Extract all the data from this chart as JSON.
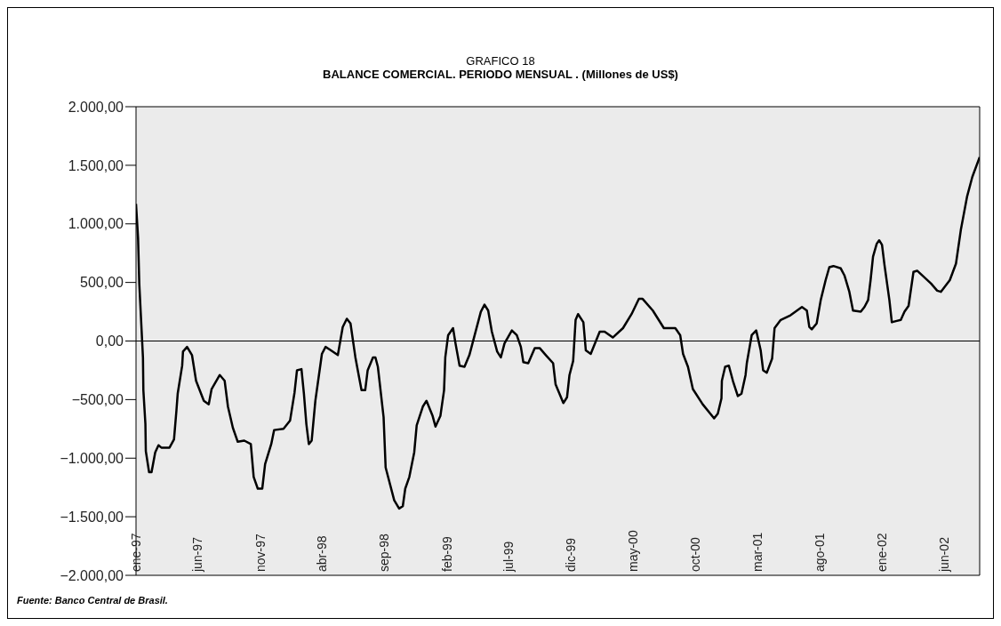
{
  "chart_data": {
    "type": "line",
    "title": "GRAFICO 18",
    "subtitle": "BALANCE COMERCIAL. PERIODO MENSUAL . (Millones de US$)",
    "annotations": [
      "Fuente: Banco Central de Brasil."
    ],
    "x": [
      "1997-01-01",
      "1997-01-06",
      "1997-01-09",
      "1997-01-18",
      "1997-01-19",
      "1997-01-24",
      "1997-01-25",
      "1997-02-02",
      "1997-02-08",
      "1997-02-17",
      "1997-02-25",
      "1997-03-04",
      "1997-03-24",
      "1997-04-04",
      "1997-04-10",
      "1997-04-13",
      "1997-04-24",
      "1997-04-26",
      "1997-05-06",
      "1997-05-18",
      "1997-05-28",
      "1997-06-16",
      "1997-06-28",
      "1997-07-05",
      "1997-07-25",
      "1997-08-06",
      "1997-08-14",
      "1997-08-26",
      "1997-09-07",
      "1997-09-23",
      "1997-10-09",
      "1997-10-16",
      "1997-10-26",
      "1997-11-06",
      "1997-11-13",
      "1997-11-28",
      "1997-12-05",
      "1997-12-28",
      "1998-01-13",
      "1998-01-24",
      "1998-01-30",
      "1998-02-10",
      "1998-02-16",
      "1998-02-22",
      "1998-02-28",
      "1998-03-07",
      "1998-03-16",
      "1998-04-01",
      "1998-04-10",
      "1998-04-19",
      "1998-05-10",
      "1998-05-22",
      "1998-06-01",
      "1998-06-10",
      "1998-06-22",
      "1998-07-01",
      "1998-07-07",
      "1998-07-16",
      "1998-07-22",
      "1998-08-04",
      "1998-08-10",
      "1998-08-16",
      "1998-08-30",
      "1998-09-04",
      "1998-09-25",
      "1998-10-07",
      "1998-10-16",
      "1998-10-22",
      "1998-11-01",
      "1998-11-13",
      "1998-11-19",
      "1998-12-04",
      "1998-12-13",
      "1998-12-28",
      "1999-01-04",
      "1999-01-16",
      "1999-01-25",
      "1999-01-28",
      "1999-02-04",
      "1999-02-16",
      "1999-02-22",
      "1999-03-04",
      "1999-03-16",
      "1999-03-28",
      "1999-04-25",
      "1999-05-04",
      "1999-05-13",
      "1999-05-22",
      "1999-06-04",
      "1999-06-13",
      "1999-06-22",
      "1999-07-10",
      "1999-07-22",
      "1999-08-01",
      "1999-08-07",
      "1999-08-19",
      "1999-09-04",
      "1999-09-16",
      "1999-10-01",
      "1999-10-19",
      "1999-10-25",
      "1999-11-13",
      "1999-11-22",
      "1999-11-28",
      "1999-12-07",
      "1999-12-13",
      "1999-12-19",
      "2000-01-01",
      "2000-01-07",
      "2000-01-19",
      "2000-02-10",
      "2000-02-22",
      "2000-03-13",
      "2000-04-07",
      "2000-04-28",
      "2000-05-16",
      "2000-05-25",
      "2000-06-19",
      "2000-07-16",
      "2000-08-13",
      "2000-08-25",
      "2000-09-01",
      "2000-09-13",
      "2000-09-25",
      "2000-10-19",
      "2000-11-16",
      "2000-11-25",
      "2000-12-04",
      "2000-12-05",
      "2000-12-13",
      "2000-12-22",
      "2001-01-01",
      "2001-01-13",
      "2001-01-22",
      "2001-02-01",
      "2001-02-04",
      "2001-02-16",
      "2001-02-27",
      "2001-03-10",
      "2001-03-16",
      "2001-03-25",
      "2001-04-07",
      "2001-04-13",
      "2001-04-28",
      "2001-05-22",
      "2001-06-19",
      "2001-07-01",
      "2001-07-07",
      "2001-07-13",
      "2001-07-25",
      "2001-08-04",
      "2001-08-16",
      "2001-08-25",
      "2001-09-04",
      "2001-09-22",
      "2001-10-01",
      "2001-10-13",
      "2001-10-22",
      "2001-11-10",
      "2001-11-19",
      "2001-11-28",
      "2001-12-04",
      "2001-12-10",
      "2001-12-19",
      "2001-12-25",
      "2002-01-01",
      "2002-01-07",
      "2002-01-19",
      "2002-01-25",
      "2002-02-04",
      "2002-02-16",
      "2002-02-25",
      "2002-03-07",
      "2002-03-19",
      "2002-03-28",
      "2002-05-01",
      "2002-05-16",
      "2002-05-25",
      "2002-06-16",
      "2002-07-01",
      "2002-07-13",
      "2002-07-28",
      "2002-08-10",
      "2002-08-28"
    ],
    "series": [
      {
        "color": "#000000",
        "values": [
          1170,
          880,
          490,
          -140,
          -420,
          -710,
          -940,
          -1120,
          -1120,
          -950,
          -890,
          -910,
          -910,
          -840,
          -590,
          -450,
          -210,
          -90,
          -50,
          -120,
          -340,
          -510,
          -540,
          -410,
          -290,
          -340,
          -560,
          -740,
          -860,
          -850,
          -880,
          -1160,
          -1260,
          -1260,
          -1050,
          -880,
          -760,
          -750,
          -680,
          -440,
          -250,
          -240,
          -450,
          -710,
          -880,
          -850,
          -510,
          -110,
          -50,
          -70,
          -120,
          120,
          190,
          150,
          -140,
          -310,
          -420,
          -420,
          -250,
          -140,
          -140,
          -220,
          -650,
          -1080,
          -1360,
          -1430,
          -1410,
          -1260,
          -1160,
          -950,
          -720,
          -560,
          -510,
          -640,
          -730,
          -640,
          -420,
          -140,
          50,
          110,
          -20,
          -210,
          -220,
          -120,
          250,
          310,
          260,
          80,
          -90,
          -140,
          -20,
          90,
          50,
          -50,
          -180,
          -190,
          -60,
          -60,
          -120,
          -190,
          -370,
          -530,
          -480,
          -290,
          -170,
          180,
          230,
          160,
          -80,
          -110,
          80,
          80,
          30,
          110,
          230,
          360,
          360,
          260,
          110,
          110,
          50,
          -110,
          -220,
          -410,
          -540,
          -660,
          -620,
          -490,
          -340,
          -220,
          -210,
          -340,
          -470,
          -450,
          -290,
          -190,
          50,
          90,
          -80,
          -250,
          -270,
          -150,
          110,
          180,
          220,
          290,
          260,
          120,
          100,
          150,
          350,
          520,
          630,
          640,
          620,
          560,
          420,
          260,
          250,
          290,
          350,
          520,
          720,
          830,
          860,
          820,
          650,
          350,
          160,
          170,
          180,
          250,
          300,
          590,
          600,
          490,
          430,
          420,
          520,
          660,
          950,
          1230,
          1400,
          1570
        ]
      }
    ],
    "xlim": [
      "1997-01-01",
      "2002-08-28"
    ],
    "xticks": [
      {
        "value": "1997-01-01",
        "label": "ene-97"
      },
      {
        "value": "1997-06-01",
        "label": "jun-97"
      },
      {
        "value": "1997-11-01",
        "label": "nov-97"
      },
      {
        "value": "1998-04-01",
        "label": "abr-98"
      },
      {
        "value": "1998-09-01",
        "label": "sep-98"
      },
      {
        "value": "1999-02-01",
        "label": "feb-99"
      },
      {
        "value": "1999-07-01",
        "label": "jul-99"
      },
      {
        "value": "1999-12-01",
        "label": "dic-99"
      },
      {
        "value": "2000-05-01",
        "label": "may-00"
      },
      {
        "value": "2000-10-01",
        "label": "oct-00"
      },
      {
        "value": "2001-03-01",
        "label": "mar-01"
      },
      {
        "value": "2001-08-01",
        "label": "ago-01"
      },
      {
        "value": "2002-01-01",
        "label": "ene-02"
      },
      {
        "value": "2002-06-01",
        "label": "jun-02"
      }
    ],
    "ylim": [
      -2000,
      2000
    ],
    "yticks": [
      {
        "value": -2000,
        "label": "−2.000,00"
      },
      {
        "value": -1500,
        "label": "−1.500,00"
      },
      {
        "value": -1000,
        "label": "−1.000,00"
      },
      {
        "value": -500,
        "label": "−500,00"
      },
      {
        "value": 0,
        "label": "0,00"
      },
      {
        "value": 500,
        "label": "500,00"
      },
      {
        "value": 1000,
        "label": "1.000,00"
      },
      {
        "value": 1500,
        "label": "1.500,00"
      },
      {
        "value": 2000,
        "label": "2.000,00"
      }
    ],
    "ref_lines": [
      {
        "axis": "y",
        "value": 0,
        "color": "#000000"
      }
    ],
    "marker": "none",
    "line_style": "solid"
  }
}
